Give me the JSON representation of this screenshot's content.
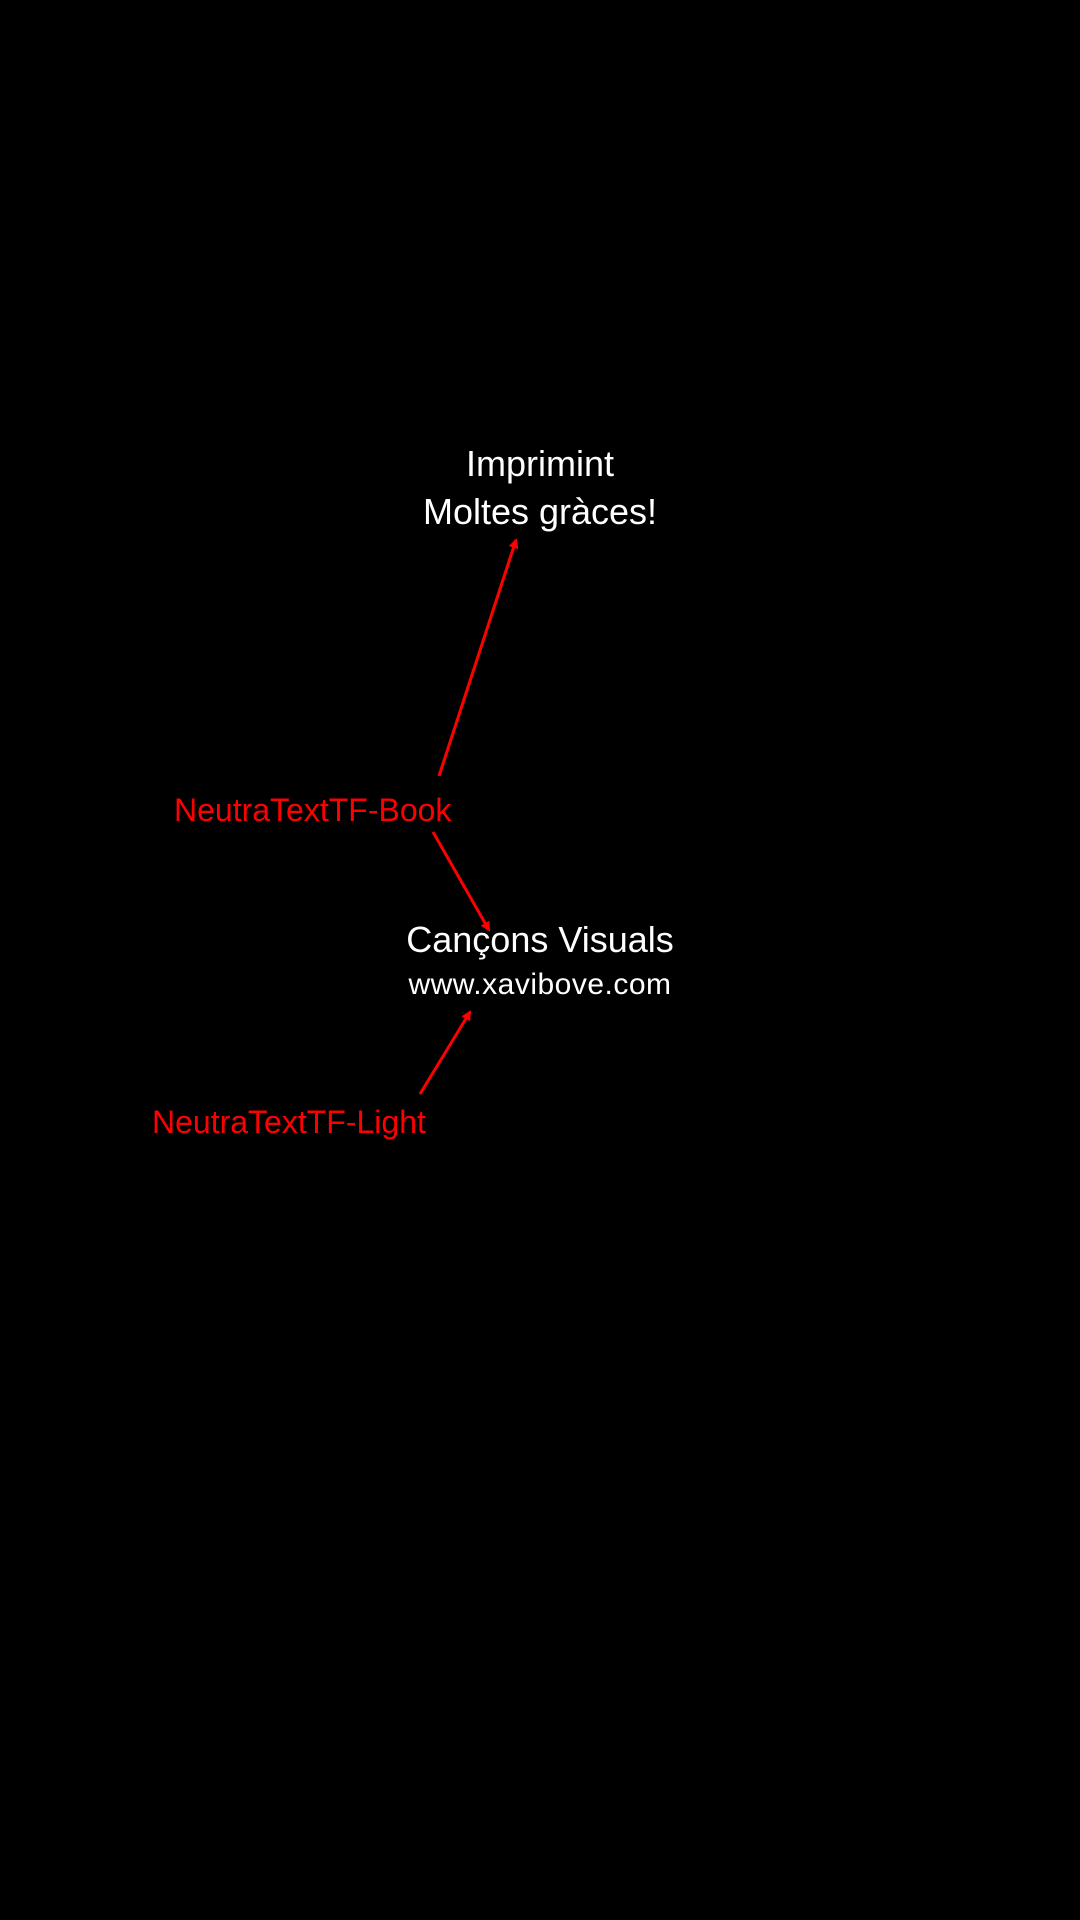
{
  "screen": {
    "background_color": "#000000"
  },
  "printing": {
    "line1": "Imprimint",
    "line2": "Moltes gràces!"
  },
  "footer_card": {
    "title": "Cançons Visuals",
    "url": "www.xavibove.com"
  },
  "annotations": {
    "book_font_label": "NeutraTextTF-Book",
    "light_font_label": "NeutraTextTF-Light",
    "color": "#ff0000"
  }
}
